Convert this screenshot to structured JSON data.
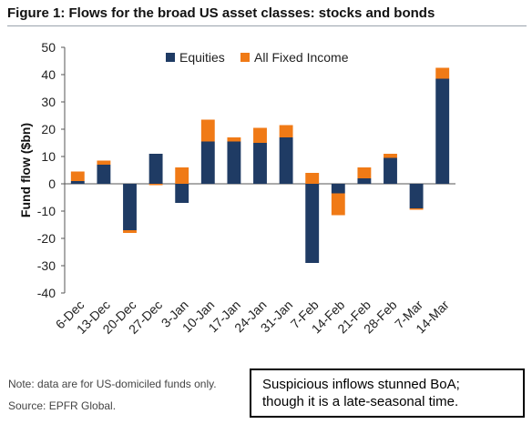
{
  "title": "Figure 1: Flows for the broad US asset classes: stocks and bonds",
  "note": "Note: data are for US-domiciled funds only.",
  "source": "Source: EPFR Global.",
  "callout": {
    "line1": "Suspicious inflows stunned BoA;",
    "line2": "though it is a late-seasonal time."
  },
  "colors": {
    "equities": "#1f3b64",
    "fixed_income": "#f07a16"
  },
  "chart_data": {
    "type": "bar",
    "stacked": true,
    "title": "Figure 1: Flows for the broad US asset classes: stocks and bonds",
    "xlabel": "",
    "ylabel": "Fund flow ($bn)",
    "ylim": [
      -40,
      50
    ],
    "yticks": [
      50,
      40,
      30,
      20,
      10,
      0,
      -10,
      -20,
      -30,
      -40
    ],
    "grid": false,
    "legend_position": "top-center",
    "categories": [
      "6-Dec",
      "13-Dec",
      "20-Dec",
      "27-Dec",
      "3-Jan",
      "10-Jan",
      "17-Jan",
      "24-Jan",
      "31-Jan",
      "7-Feb",
      "14-Feb",
      "21-Feb",
      "28-Feb",
      "7-Mar",
      "14-Mar"
    ],
    "series": [
      {
        "name": "Equities",
        "values": [
          1,
          7,
          -17,
          11,
          -7,
          15.5,
          15.5,
          15,
          17,
          -29,
          -3.5,
          2,
          9.5,
          -9,
          38.5
        ]
      },
      {
        "name": "All Fixed Income",
        "values": [
          3.5,
          1.5,
          -1,
          -0.5,
          6,
          8,
          1.5,
          5.5,
          4.5,
          4,
          -8,
          4,
          1.5,
          -0.5,
          4
        ]
      }
    ]
  }
}
